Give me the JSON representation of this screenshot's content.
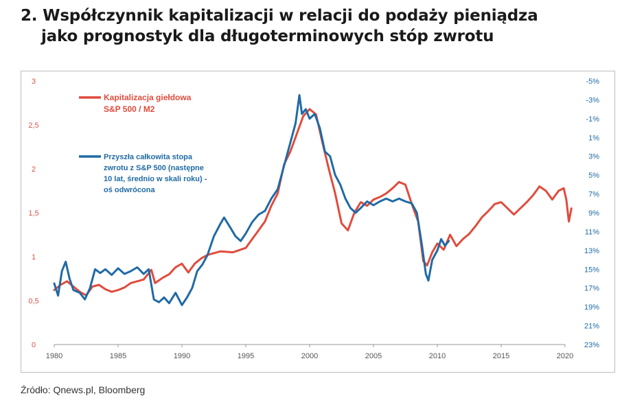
{
  "header": {
    "title_line1": "2. Współczynnik kapitalizacji w relacji do podaży pieniądza",
    "title_line2": "jako prognostyk dla długoterminowych stóp zwrotu"
  },
  "footer": {
    "source": "Źródło: Qnews.pl, Bloomberg"
  },
  "chart_data": {
    "type": "line",
    "x_ticks": [
      "1980",
      "1985",
      "1990",
      "1995",
      "2000",
      "2005",
      "2010",
      "2015",
      "2020"
    ],
    "left_axis": {
      "ticks": [
        "0",
        "0,5",
        "1",
        "1,5",
        "2",
        "2,5",
        "3"
      ],
      "ylim": [
        0,
        3
      ],
      "color": "#e04b3c"
    },
    "right_axis": {
      "ticks": [
        "-5%",
        "-3%",
        "-1%",
        "1%",
        "3%",
        "5%",
        "7%",
        "9%",
        "11%",
        "13%",
        "15%",
        "17%",
        "19%",
        "21%",
        "23%"
      ],
      "ylim": [
        -5,
        23
      ],
      "inverted": true,
      "color": "#1f6aa5"
    },
    "series": [
      {
        "name_lines": [
          "Kapitalizacja giełdowa",
          "S&P 500 / M2"
        ],
        "axis": "left",
        "color": "#e04b3c",
        "points": [
          [
            1980.0,
            0.62
          ],
          [
            1980.5,
            0.68
          ],
          [
            1981.0,
            0.72
          ],
          [
            1981.5,
            0.66
          ],
          [
            1982.0,
            0.6
          ],
          [
            1982.5,
            0.56
          ],
          [
            1983.0,
            0.66
          ],
          [
            1983.5,
            0.68
          ],
          [
            1984.0,
            0.63
          ],
          [
            1984.5,
            0.6
          ],
          [
            1985.0,
            0.62
          ],
          [
            1985.5,
            0.65
          ],
          [
            1986.0,
            0.7
          ],
          [
            1986.5,
            0.72
          ],
          [
            1987.0,
            0.74
          ],
          [
            1987.6,
            0.85
          ],
          [
            1987.9,
            0.7
          ],
          [
            1988.5,
            0.76
          ],
          [
            1989.0,
            0.8
          ],
          [
            1989.5,
            0.88
          ],
          [
            1990.0,
            0.92
          ],
          [
            1990.5,
            0.82
          ],
          [
            1991.0,
            0.92
          ],
          [
            1991.5,
            0.98
          ],
          [
            1992.0,
            1.02
          ],
          [
            1993.0,
            1.06
          ],
          [
            1994.0,
            1.05
          ],
          [
            1995.0,
            1.1
          ],
          [
            1995.5,
            1.2
          ],
          [
            1996.0,
            1.3
          ],
          [
            1996.5,
            1.4
          ],
          [
            1997.0,
            1.58
          ],
          [
            1997.5,
            1.72
          ],
          [
            1998.0,
            2.05
          ],
          [
            1998.5,
            2.2
          ],
          [
            1999.0,
            2.4
          ],
          [
            1999.5,
            2.6
          ],
          [
            2000.0,
            2.68
          ],
          [
            2000.5,
            2.62
          ],
          [
            2001.0,
            2.3
          ],
          [
            2001.5,
            2.0
          ],
          [
            2002.0,
            1.72
          ],
          [
            2002.5,
            1.38
          ],
          [
            2003.0,
            1.3
          ],
          [
            2003.5,
            1.5
          ],
          [
            2004.0,
            1.62
          ],
          [
            2004.5,
            1.58
          ],
          [
            2005.0,
            1.65
          ],
          [
            2005.5,
            1.68
          ],
          [
            2006.0,
            1.72
          ],
          [
            2006.5,
            1.78
          ],
          [
            2007.0,
            1.85
          ],
          [
            2007.5,
            1.82
          ],
          [
            2008.0,
            1.6
          ],
          [
            2008.5,
            1.4
          ],
          [
            2008.9,
            0.95
          ],
          [
            2009.2,
            0.9
          ],
          [
            2009.6,
            1.05
          ],
          [
            2010.0,
            1.15
          ],
          [
            2010.5,
            1.08
          ],
          [
            2011.0,
            1.25
          ],
          [
            2011.5,
            1.12
          ],
          [
            2012.0,
            1.2
          ],
          [
            2012.5,
            1.26
          ],
          [
            2013.0,
            1.35
          ],
          [
            2013.5,
            1.45
          ],
          [
            2014.0,
            1.52
          ],
          [
            2014.5,
            1.6
          ],
          [
            2015.0,
            1.62
          ],
          [
            2015.5,
            1.55
          ],
          [
            2016.0,
            1.48
          ],
          [
            2016.5,
            1.55
          ],
          [
            2017.0,
            1.62
          ],
          [
            2017.5,
            1.7
          ],
          [
            2018.0,
            1.8
          ],
          [
            2018.5,
            1.75
          ],
          [
            2019.0,
            1.65
          ],
          [
            2019.5,
            1.75
          ],
          [
            2019.9,
            1.78
          ],
          [
            2020.1,
            1.65
          ],
          [
            2020.3,
            1.4
          ],
          [
            2020.5,
            1.55
          ]
        ]
      },
      {
        "name_lines": [
          "Przyszła całkowita stopa",
          "zwrotu z S&P 500 (następne",
          "10 lat, średnio w skali roku) -",
          "oś odwrócona"
        ],
        "axis": "right",
        "color": "#1f6aa5",
        "points": [
          [
            1980.0,
            16.5
          ],
          [
            1980.3,
            17.8
          ],
          [
            1980.6,
            15.2
          ],
          [
            1980.9,
            14.2
          ],
          [
            1981.2,
            16.0
          ],
          [
            1981.5,
            17.2
          ],
          [
            1982.0,
            17.5
          ],
          [
            1982.4,
            18.2
          ],
          [
            1982.8,
            17.0
          ],
          [
            1983.2,
            15.0
          ],
          [
            1983.6,
            15.4
          ],
          [
            1984.0,
            15.0
          ],
          [
            1984.5,
            15.6
          ],
          [
            1985.0,
            14.9
          ],
          [
            1985.5,
            15.5
          ],
          [
            1986.0,
            15.2
          ],
          [
            1986.5,
            14.8
          ],
          [
            1987.0,
            15.5
          ],
          [
            1987.4,
            15.0
          ],
          [
            1987.8,
            18.2
          ],
          [
            1988.2,
            18.5
          ],
          [
            1988.6,
            18.0
          ],
          [
            1989.0,
            18.6
          ],
          [
            1989.5,
            17.5
          ],
          [
            1990.0,
            18.8
          ],
          [
            1990.4,
            18.0
          ],
          [
            1990.8,
            17.0
          ],
          [
            1991.2,
            15.2
          ],
          [
            1991.6,
            14.5
          ],
          [
            1992.0,
            13.5
          ],
          [
            1992.5,
            11.5
          ],
          [
            1993.0,
            10.2
          ],
          [
            1993.3,
            9.5
          ],
          [
            1993.8,
            10.6
          ],
          [
            1994.2,
            11.5
          ],
          [
            1994.6,
            12.0
          ],
          [
            1995.0,
            11.2
          ],
          [
            1995.5,
            10.0
          ],
          [
            1996.0,
            9.2
          ],
          [
            1996.5,
            8.8
          ],
          [
            1997.0,
            7.5
          ],
          [
            1997.5,
            6.5
          ],
          [
            1998.0,
            4.0
          ],
          [
            1998.5,
            1.5
          ],
          [
            1998.9,
            -0.5
          ],
          [
            1999.2,
            -3.5
          ],
          [
            1999.4,
            -1.5
          ],
          [
            1999.7,
            -2.0
          ],
          [
            2000.0,
            -1.0
          ],
          [
            2000.4,
            -1.5
          ],
          [
            2000.8,
            0.0
          ],
          [
            2001.2,
            2.5
          ],
          [
            2001.6,
            3.0
          ],
          [
            2002.0,
            5.0
          ],
          [
            2002.4,
            6.0
          ],
          [
            2002.8,
            7.5
          ],
          [
            2003.2,
            8.5
          ],
          [
            2003.6,
            9.0
          ],
          [
            2004.0,
            8.5
          ],
          [
            2004.5,
            7.8
          ],
          [
            2005.0,
            8.2
          ],
          [
            2005.5,
            7.8
          ],
          [
            2006.0,
            7.5
          ],
          [
            2006.5,
            7.8
          ],
          [
            2007.0,
            7.5
          ],
          [
            2007.5,
            7.8
          ],
          [
            2008.0,
            8.0
          ],
          [
            2008.4,
            9.0
          ],
          [
            2008.8,
            12.5
          ],
          [
            2009.1,
            15.5
          ],
          [
            2009.3,
            16.2
          ],
          [
            2009.6,
            14.0
          ],
          [
            2010.0,
            13.0
          ],
          [
            2010.3,
            11.8
          ],
          [
            2010.6,
            12.5
          ],
          [
            2010.9,
            12.0
          ]
        ]
      }
    ]
  }
}
